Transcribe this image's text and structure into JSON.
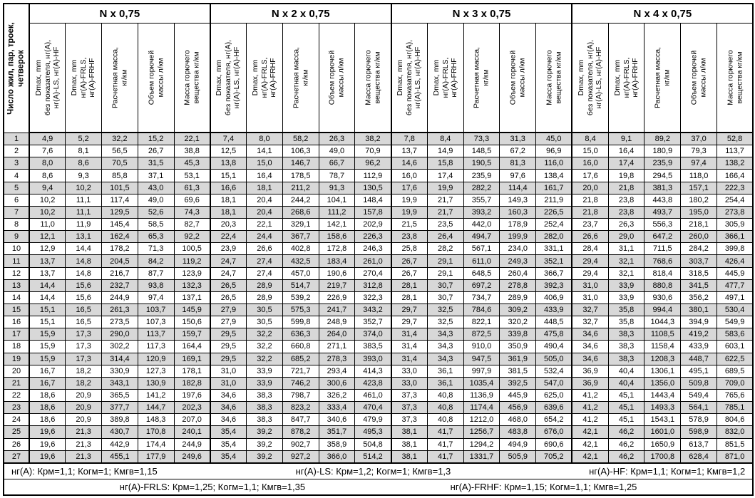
{
  "table": {
    "first_col_header": "Число жил, пар, троек,\nчетверок",
    "groups": [
      "N х 0,75",
      "N х 2 х 0,75",
      "N х 3 х 0,75",
      "N х 4 х 0,75"
    ],
    "sub_headers": [
      "Dmax, mm\nбез показателя, нг(А),\nнг(А)-LS, нг(А)-HF",
      "Dmax, mm\nнг(А)-FRLS,\nнг(А)-FRHF",
      "Расчетная масса,\nкг/км",
      "Объем горючей\nмассы л/км",
      "Масса горючего\nвещества кг/км"
    ],
    "rows": [
      [
        1,
        "4,9",
        "5,2",
        "32,2",
        "15,2",
        "22,1",
        "7,4",
        "8,0",
        "58,2",
        "26,3",
        "38,2",
        "7,8",
        "8,4",
        "73,3",
        "31,3",
        "45,0",
        "8,4",
        "9,1",
        "89,2",
        "37,0",
        "52,8"
      ],
      [
        2,
        "7,6",
        "8,1",
        "56,5",
        "26,7",
        "38,8",
        "12,5",
        "14,1",
        "106,3",
        "49,0",
        "70,9",
        "13,7",
        "14,9",
        "148,5",
        "67,2",
        "96,9",
        "15,0",
        "16,4",
        "180,9",
        "79,3",
        "113,7"
      ],
      [
        3,
        "8,0",
        "8,6",
        "70,5",
        "31,5",
        "45,3",
        "13,8",
        "15,0",
        "146,7",
        "66,7",
        "96,2",
        "14,6",
        "15,8",
        "190,5",
        "81,3",
        "116,0",
        "16,0",
        "17,4",
        "235,9",
        "97,4",
        "138,2"
      ],
      [
        4,
        "8,6",
        "9,3",
        "85,8",
        "37,1",
        "53,1",
        "15,1",
        "16,4",
        "178,5",
        "78,7",
        "112,9",
        "16,0",
        "17,4",
        "235,9",
        "97,6",
        "138,4",
        "17,6",
        "19,8",
        "294,5",
        "118,0",
        "166,4"
      ],
      [
        5,
        "9,4",
        "10,2",
        "101,5",
        "43,0",
        "61,3",
        "16,6",
        "18,1",
        "211,2",
        "91,3",
        "130,5",
        "17,6",
        "19,9",
        "282,2",
        "114,4",
        "161,7",
        "20,0",
        "21,8",
        "381,3",
        "157,1",
        "222,3"
      ],
      [
        6,
        "10,2",
        "11,1",
        "117,4",
        "49,0",
        "69,6",
        "18,1",
        "20,4",
        "244,2",
        "104,1",
        "148,4",
        "19,9",
        "21,7",
        "355,7",
        "149,3",
        "211,9",
        "21,8",
        "23,8",
        "443,8",
        "180,2",
        "254,4"
      ],
      [
        7,
        "10,2",
        "11,1",
        "129,5",
        "52,6",
        "74,3",
        "18,1",
        "20,4",
        "268,6",
        "111,2",
        "157,8",
        "19,9",
        "21,7",
        "393,2",
        "160,3",
        "226,5",
        "21,8",
        "23,8",
        "493,7",
        "195,0",
        "273,8"
      ],
      [
        8,
        "11,0",
        "11,9",
        "145,4",
        "58,5",
        "82,7",
        "20,3",
        "22,1",
        "329,1",
        "142,1",
        "202,9",
        "21,5",
        "23,5",
        "442,0",
        "178,9",
        "252,4",
        "23,7",
        "26,3",
        "556,3",
        "218,1",
        "305,9"
      ],
      [
        9,
        "12,1",
        "13,1",
        "162,4",
        "65,3",
        "92,2",
        "22,4",
        "24,4",
        "367,7",
        "158,6",
        "226,3",
        "23,8",
        "26,4",
        "494,7",
        "199,9",
        "282,0",
        "26,6",
        "29,0",
        "647,2",
        "260,0",
        "366,1"
      ],
      [
        10,
        "12,9",
        "14,4",
        "178,2",
        "71,3",
        "100,5",
        "23,9",
        "26,6",
        "402,8",
        "172,8",
        "246,3",
        "25,8",
        "28,2",
        "567,1",
        "234,0",
        "331,1",
        "28,4",
        "31,1",
        "711,5",
        "284,2",
        "399,8"
      ],
      [
        11,
        "13,7",
        "14,8",
        "204,5",
        "84,2",
        "119,2",
        "24,7",
        "27,4",
        "432,5",
        "183,4",
        "261,0",
        "26,7",
        "29,1",
        "611,0",
        "249,3",
        "352,1",
        "29,4",
        "32,1",
        "768,6",
        "303,7",
        "426,4"
      ],
      [
        12,
        "13,7",
        "14,8",
        "216,7",
        "87,7",
        "123,9",
        "24,7",
        "27,4",
        "457,0",
        "190,6",
        "270,4",
        "26,7",
        "29,1",
        "648,5",
        "260,4",
        "366,7",
        "29,4",
        "32,1",
        "818,4",
        "318,5",
        "445,9"
      ],
      [
        13,
        "14,4",
        "15,6",
        "232,7",
        "93,8",
        "132,3",
        "26,5",
        "28,9",
        "514,7",
        "219,7",
        "312,8",
        "28,1",
        "30,7",
        "697,2",
        "278,8",
        "392,3",
        "31,0",
        "33,9",
        "880,8",
        "341,5",
        "477,7"
      ],
      [
        14,
        "14,4",
        "15,6",
        "244,9",
        "97,4",
        "137,1",
        "26,5",
        "28,9",
        "539,2",
        "226,9",
        "322,3",
        "28,1",
        "30,7",
        "734,7",
        "289,9",
        "406,9",
        "31,0",
        "33,9",
        "930,6",
        "356,2",
        "497,1"
      ],
      [
        15,
        "15,1",
        "16,5",
        "261,3",
        "103,7",
        "145,9",
        "27,9",
        "30,5",
        "575,3",
        "241,7",
        "343,2",
        "29,7",
        "32,5",
        "784,6",
        "309,2",
        "433,9",
        "32,7",
        "35,8",
        "994,4",
        "380,1",
        "530,4"
      ],
      [
        16,
        "15,1",
        "16,5",
        "273,5",
        "107,3",
        "150,6",
        "27,9",
        "30,5",
        "599,8",
        "248,9",
        "352,7",
        "29,7",
        "32,5",
        "822,1",
        "320,2",
        "448,5",
        "32,7",
        "35,8",
        "1044,3",
        "394,9",
        "549,9"
      ],
      [
        17,
        "15,9",
        "17,3",
        "290,0",
        "113,7",
        "159,7",
        "29,5",
        "32,2",
        "636,3",
        "264,0",
        "374,0",
        "31,4",
        "34,3",
        "872,5",
        "339,8",
        "475,8",
        "34,6",
        "38,3",
        "1108,5",
        "419,2",
        "583,6"
      ],
      [
        18,
        "15,9",
        "17,3",
        "302,2",
        "117,3",
        "164,4",
        "29,5",
        "32,2",
        "660,8",
        "271,1",
        "383,5",
        "31,4",
        "34,3",
        "910,0",
        "350,9",
        "490,4",
        "34,6",
        "38,3",
        "1158,4",
        "433,9",
        "603,1"
      ],
      [
        19,
        "15,9",
        "17,3",
        "314,4",
        "120,9",
        "169,1",
        "29,5",
        "32,2",
        "685,2",
        "278,3",
        "393,0",
        "31,4",
        "34,3",
        "947,5",
        "361,9",
        "505,0",
        "34,6",
        "38,3",
        "1208,3",
        "448,7",
        "622,5"
      ],
      [
        20,
        "16,7",
        "18,2",
        "330,9",
        "127,3",
        "178,1",
        "31,0",
        "33,9",
        "721,7",
        "293,4",
        "414,3",
        "33,0",
        "36,1",
        "997,9",
        "381,5",
        "532,4",
        "36,9",
        "40,4",
        "1306,1",
        "495,1",
        "689,5"
      ],
      [
        21,
        "16,7",
        "18,2",
        "343,1",
        "130,9",
        "182,8",
        "31,0",
        "33,9",
        "746,2",
        "300,6",
        "423,8",
        "33,0",
        "36,1",
        "1035,4",
        "392,5",
        "547,0",
        "36,9",
        "40,4",
        "1356,0",
        "509,8",
        "709,0"
      ],
      [
        22,
        "18,6",
        "20,9",
        "365,5",
        "141,2",
        "197,6",
        "34,6",
        "38,3",
        "798,7",
        "326,2",
        "461,0",
        "37,3",
        "40,8",
        "1136,9",
        "445,9",
        "625,0",
        "41,2",
        "45,1",
        "1443,4",
        "549,4",
        "765,6"
      ],
      [
        23,
        "18,6",
        "20,9",
        "377,7",
        "144,7",
        "202,3",
        "34,6",
        "38,3",
        "823,2",
        "333,4",
        "470,4",
        "37,3",
        "40,8",
        "1174,4",
        "456,9",
        "639,6",
        "41,2",
        "45,1",
        "1493,3",
        "564,1",
        "785,1"
      ],
      [
        24,
        "18,6",
        "20,9",
        "389,8",
        "148,3",
        "207,0",
        "34,6",
        "38,3",
        "847,7",
        "340,6",
        "479,9",
        "37,3",
        "40,8",
        "1212,0",
        "468,0",
        "654,2",
        "41,2",
        "45,1",
        "1543,1",
        "578,9",
        "804,6"
      ],
      [
        25,
        "19,6",
        "21,3",
        "430,7",
        "170,8",
        "240,1",
        "35,4",
        "39,2",
        "878,2",
        "351,7",
        "495,3",
        "38,1",
        "41,7",
        "1256,7",
        "483,8",
        "676,0",
        "42,1",
        "46,2",
        "1601,0",
        "598,9",
        "832,0"
      ],
      [
        26,
        "19,6",
        "21,3",
        "442,9",
        "174,4",
        "244,9",
        "35,4",
        "39,2",
        "902,7",
        "358,9",
        "504,8",
        "38,1",
        "41,7",
        "1294,2",
        "494,9",
        "690,6",
        "42,1",
        "46,2",
        "1650,9",
        "613,7",
        "851,5"
      ],
      [
        27,
        "19,6",
        "21,3",
        "455,1",
        "177,9",
        "249,6",
        "35,4",
        "39,2",
        "927,2",
        "366,0",
        "514,2",
        "38,1",
        "41,7",
        "1331,7",
        "505,9",
        "705,2",
        "42,1",
        "46,2",
        "1700,8",
        "628,4",
        "871,0"
      ]
    ],
    "footer": {
      "line1": [
        "нг(А): Крм=1,1;  Когм=1;  Кмгв=1,15",
        "нг(А)-LS: Крм=1,2;  Когм=1;  Кмгв=1,3",
        "нг(А)-HF: Крм=1,1;  Когм=1;  Кмгв=1,2"
      ],
      "line2": [
        "нг(А)-FRLS: Крм=1,25;  Когм=1,1;  Кмгв=1,35",
        "нг(А)-FRHF: Крм=1,15;  Когм=1,1;  Кмгв=1,25"
      ]
    },
    "colors": {
      "stripe": "#d8d8d8",
      "border": "#000000",
      "background": "#ffffff"
    }
  }
}
